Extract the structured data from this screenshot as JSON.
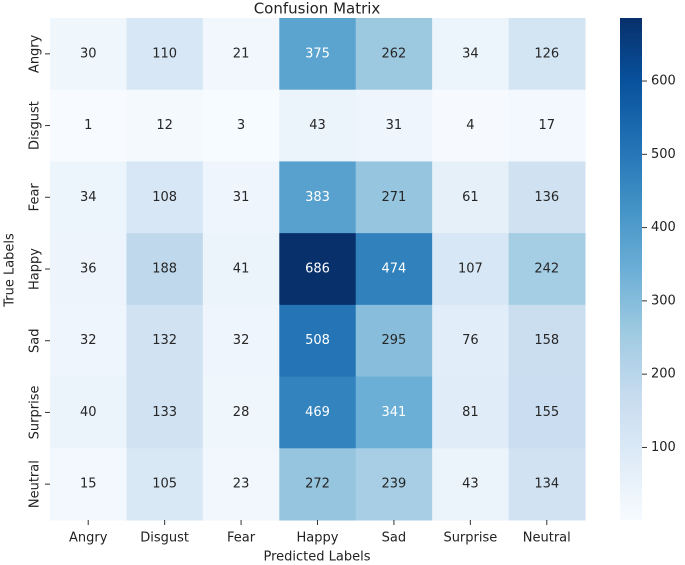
{
  "chart_data": {
    "type": "heatmap",
    "title": "Confusion Matrix",
    "xlabel": "Predicted Labels",
    "ylabel": "True Labels",
    "x": [
      "Angry",
      "Disgust",
      "Fear",
      "Happy",
      "Sad",
      "Surprise",
      "Neutral"
    ],
    "y": [
      "Angry",
      "Disgust",
      "Fear",
      "Happy",
      "Sad",
      "Surprise",
      "Neutral"
    ],
    "z": [
      [
        30,
        110,
        21,
        375,
        262,
        34,
        126
      ],
      [
        1,
        12,
        3,
        43,
        31,
        4,
        17
      ],
      [
        34,
        108,
        31,
        383,
        271,
        61,
        136
      ],
      [
        36,
        188,
        41,
        686,
        474,
        107,
        242
      ],
      [
        32,
        132,
        32,
        508,
        295,
        76,
        158
      ],
      [
        40,
        133,
        28,
        469,
        341,
        81,
        155
      ],
      [
        15,
        105,
        23,
        272,
        239,
        43,
        134
      ]
    ],
    "colormap": "Blues",
    "zlim": [
      1,
      686
    ],
    "zticks": [
      100,
      200,
      300,
      400,
      500,
      600
    ]
  }
}
